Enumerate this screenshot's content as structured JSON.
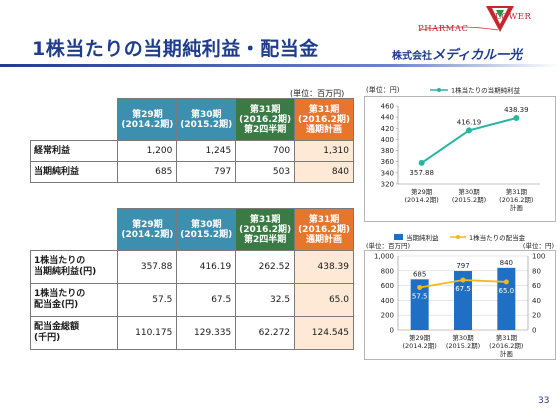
{
  "header": {
    "title": "1株当たりの当期純利益・配当金",
    "company_prefix": "株式会社",
    "company_name": "メディカル一光",
    "logo_pharmac": "PHARMAC",
    "logo_lower": "LOWER"
  },
  "table1": {
    "unit": "(単位：百万円)",
    "columns": [
      {
        "line1": "第29期",
        "line2": "(2014.2期)",
        "line3": ""
      },
      {
        "line1": "第30期",
        "line2": "(2015.2期)",
        "line3": ""
      },
      {
        "line1": "第31期",
        "line2": "(2016.2期)",
        "line3": "第2四半期"
      },
      {
        "line1": "第31期",
        "line2": "(2016.2期)",
        "line3": "通期計画"
      }
    ],
    "rows": [
      {
        "label": "経常利益",
        "values": [
          "1,200",
          "1,245",
          "700",
          "1,310"
        ]
      },
      {
        "label": "当期純利益",
        "values": [
          "685",
          "797",
          "503",
          "840"
        ]
      }
    ]
  },
  "table2": {
    "columns": [
      {
        "line1": "第29期",
        "line2": "(2014.2期)",
        "line3": ""
      },
      {
        "line1": "第30期",
        "line2": "(2015.2期)",
        "line3": ""
      },
      {
        "line1": "第31期",
        "line2": "(2016.2期)",
        "line3": "第2四半期"
      },
      {
        "line1": "第31期",
        "line2": "(2016.2期)",
        "line3": "通期計画"
      }
    ],
    "rows": [
      {
        "label_line1": "1株当たりの",
        "label_line2": "当期純利益(円)",
        "values": [
          "357.88",
          "416.19",
          "262.52",
          "438.39"
        ]
      },
      {
        "label_line1": "1株当たりの",
        "label_line2": "配当金(円)",
        "values": [
          "57.5",
          "67.5",
          "32.5",
          "65.0"
        ]
      },
      {
        "label_line1": "配当金総額",
        "label_line2": "(千円)",
        "values": [
          "110.175",
          "129.335",
          "62.272",
          "124.545"
        ]
      }
    ]
  },
  "chart_data": [
    {
      "type": "line",
      "unit": "(単位：円)",
      "legend": "1株当たりの当期純利益",
      "legend_position": "top",
      "categories": [
        {
          "line1": "第29期",
          "line2": "(2014.2期)",
          "line3": ""
        },
        {
          "line1": "第30期",
          "line2": "(2015.2期)",
          "line3": ""
        },
        {
          "line1": "第31期",
          "line2": "(2016.2期)",
          "line3": "計画"
        }
      ],
      "series": [
        {
          "name": "1株当たりの当期純利益",
          "values": [
            357.88,
            416.19,
            438.39
          ],
          "labels": [
            "357.88",
            "416.19",
            "438.39"
          ],
          "color": "#2ab5a0"
        }
      ],
      "ylim": [
        320,
        460
      ],
      "yticks": [
        "320",
        "340",
        "360",
        "380",
        "400",
        "420",
        "440",
        "460"
      ],
      "grid": false
    },
    {
      "type": "bar",
      "unit_left": "(単位：百万円)",
      "unit_right": "(単位：円)",
      "legend_position": "top",
      "categories": [
        {
          "line1": "第29期",
          "line2": "(2014.2期)",
          "line3": ""
        },
        {
          "line1": "第30期",
          "line2": "(2015.2期)",
          "line3": ""
        },
        {
          "line1": "第31期",
          "line2": "(2016.2期)",
          "line3": "計画"
        }
      ],
      "series": [
        {
          "name": "当期純利益",
          "kind": "bar",
          "axis": "left",
          "values": [
            685,
            797,
            840
          ],
          "labels": [
            "685",
            "797",
            "840"
          ],
          "color": "#1f6fc4"
        },
        {
          "name": "1株当たりの配当金",
          "kind": "line",
          "axis": "right",
          "values": [
            57.5,
            67.5,
            65.0
          ],
          "labels": [
            "57.5",
            "67.5",
            "65.0"
          ],
          "color": "#f2b91e"
        }
      ],
      "ylim_left": [
        0,
        1000
      ],
      "yticks_left": [
        "0",
        "200",
        "400",
        "600",
        "800",
        "1,000"
      ],
      "ylim_right": [
        0,
        100
      ],
      "yticks_right": [
        "0",
        "20",
        "40",
        "60",
        "80",
        "100"
      ],
      "grid": true
    }
  ],
  "page_number": "33"
}
